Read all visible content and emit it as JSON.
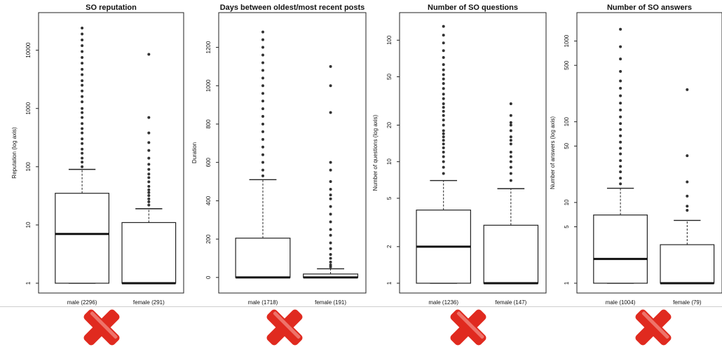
{
  "colors": {
    "box_fill": "#ffffff",
    "box_stroke": "#222222",
    "median": "#111111",
    "outlier": "#333333",
    "x_mark": "#e02a1f"
  },
  "icons": [
    "red-x-mark-icon"
  ],
  "chart_data": [
    {
      "type": "box",
      "title": "SO reputation",
      "ylabel": "Reputation (log axis)",
      "yscale": "log",
      "yticks": [
        1,
        10,
        100,
        1000,
        10000
      ],
      "ytick_labels": [
        "1",
        "10",
        "100",
        "1000",
        "10000"
      ],
      "ylim": [
        1,
        30000
      ],
      "categories": [
        "male (2296)",
        "female (291)"
      ],
      "boxes": [
        {
          "q1": 1,
          "median": 7,
          "q3": 35,
          "whisker_low": 1,
          "whisker_high": 90,
          "outliers": [
            100,
            120,
            140,
            170,
            200,
            250,
            300,
            380,
            450,
            550,
            700,
            850,
            1000,
            1300,
            1600,
            2000,
            2500,
            3000,
            3800,
            4700,
            6000,
            7500,
            9500,
            12000,
            15000,
            19000,
            24000
          ]
        },
        {
          "q1": 1,
          "median": 1,
          "q3": 11,
          "whisker_low": 1,
          "whisker_high": 19,
          "outliers": [
            22,
            25,
            28,
            32,
            36,
            40,
            46,
            55,
            65,
            75,
            90,
            110,
            140,
            190,
            260,
            380,
            700,
            8500
          ]
        }
      ]
    },
    {
      "type": "box",
      "title": "Days between oldest/most recent posts",
      "ylabel": "Duration",
      "yscale": "linear",
      "yticks": [
        0,
        200,
        400,
        600,
        800,
        1000,
        1200
      ],
      "ytick_labels": [
        "0",
        "200",
        "400",
        "600",
        "800",
        "1000",
        "1200"
      ],
      "ylim": [
        -30,
        1330
      ],
      "categories": [
        "male (1718)",
        "female (191)"
      ],
      "boxes": [
        {
          "q1": 0,
          "median": 0,
          "q3": 205,
          "whisker_low": 0,
          "whisker_high": 510,
          "outliers": [
            530,
            560,
            600,
            640,
            680,
            720,
            760,
            800,
            840,
            880,
            920,
            960,
            1000,
            1040,
            1080,
            1120,
            1160,
            1200,
            1240,
            1280
          ]
        },
        {
          "q1": 0,
          "median": 0,
          "q3": 18,
          "whisker_low": 0,
          "whisker_high": 45,
          "outliers": [
            55,
            65,
            80,
            100,
            120,
            150,
            180,
            220,
            250,
            290,
            330,
            370,
            410,
            430,
            460,
            500,
            560,
            600,
            860,
            1000,
            1100
          ]
        }
      ]
    },
    {
      "type": "box",
      "title": "Number of SO questions",
      "ylabel": "Number of questions (log axis)",
      "yscale": "log",
      "yticks": [
        1,
        2,
        5,
        10,
        20,
        50,
        100
      ],
      "ytick_labels": [
        "1",
        "2",
        "5",
        "10",
        "20",
        "50",
        "100"
      ],
      "ylim": [
        1,
        140
      ],
      "categories": [
        "male (1236)",
        "female (147)"
      ],
      "boxes": [
        {
          "q1": 1,
          "median": 2,
          "q3": 4,
          "whisker_low": 1,
          "whisker_high": 7,
          "outliers": [
            8,
            9,
            10,
            11,
            12,
            13,
            14,
            15,
            16,
            17,
            18,
            20,
            22,
            24,
            26,
            28,
            30,
            33,
            36,
            40,
            44,
            48,
            52,
            57,
            63,
            72,
            82,
            95,
            110,
            130
          ]
        },
        {
          "q1": 1,
          "median": 1,
          "q3": 3,
          "whisker_low": 1,
          "whisker_high": 6,
          "outliers": [
            7,
            8,
            9,
            10,
            11,
            12,
            14,
            15,
            16,
            18,
            20,
            21,
            24,
            30
          ]
        }
      ]
    },
    {
      "type": "box",
      "title": "Number of SO answers",
      "ylabel": "Number of answers (log axis)",
      "yscale": "log",
      "yticks": [
        1,
        5,
        10,
        50,
        100,
        500,
        1000
      ],
      "ytick_labels": [
        "1",
        "5",
        "10",
        "50",
        "100",
        "500",
        "1000"
      ],
      "ylim": [
        1,
        1700
      ],
      "categories": [
        "male (1004)",
        "female (79)"
      ],
      "boxes": [
        {
          "q1": 1,
          "median": 2,
          "q3": 7,
          "whisker_low": 1,
          "whisker_high": 15,
          "outliers": [
            17,
            20,
            24,
            28,
            33,
            40,
            47,
            56,
            67,
            80,
            95,
            115,
            140,
            170,
            210,
            260,
            320,
            420,
            600,
            850,
            1400
          ]
        },
        {
          "q1": 1,
          "median": 1,
          "q3": 3,
          "whisker_low": 1,
          "whisker_high": 6,
          "outliers": [
            8,
            9,
            12,
            18,
            38,
            250
          ]
        }
      ]
    }
  ]
}
